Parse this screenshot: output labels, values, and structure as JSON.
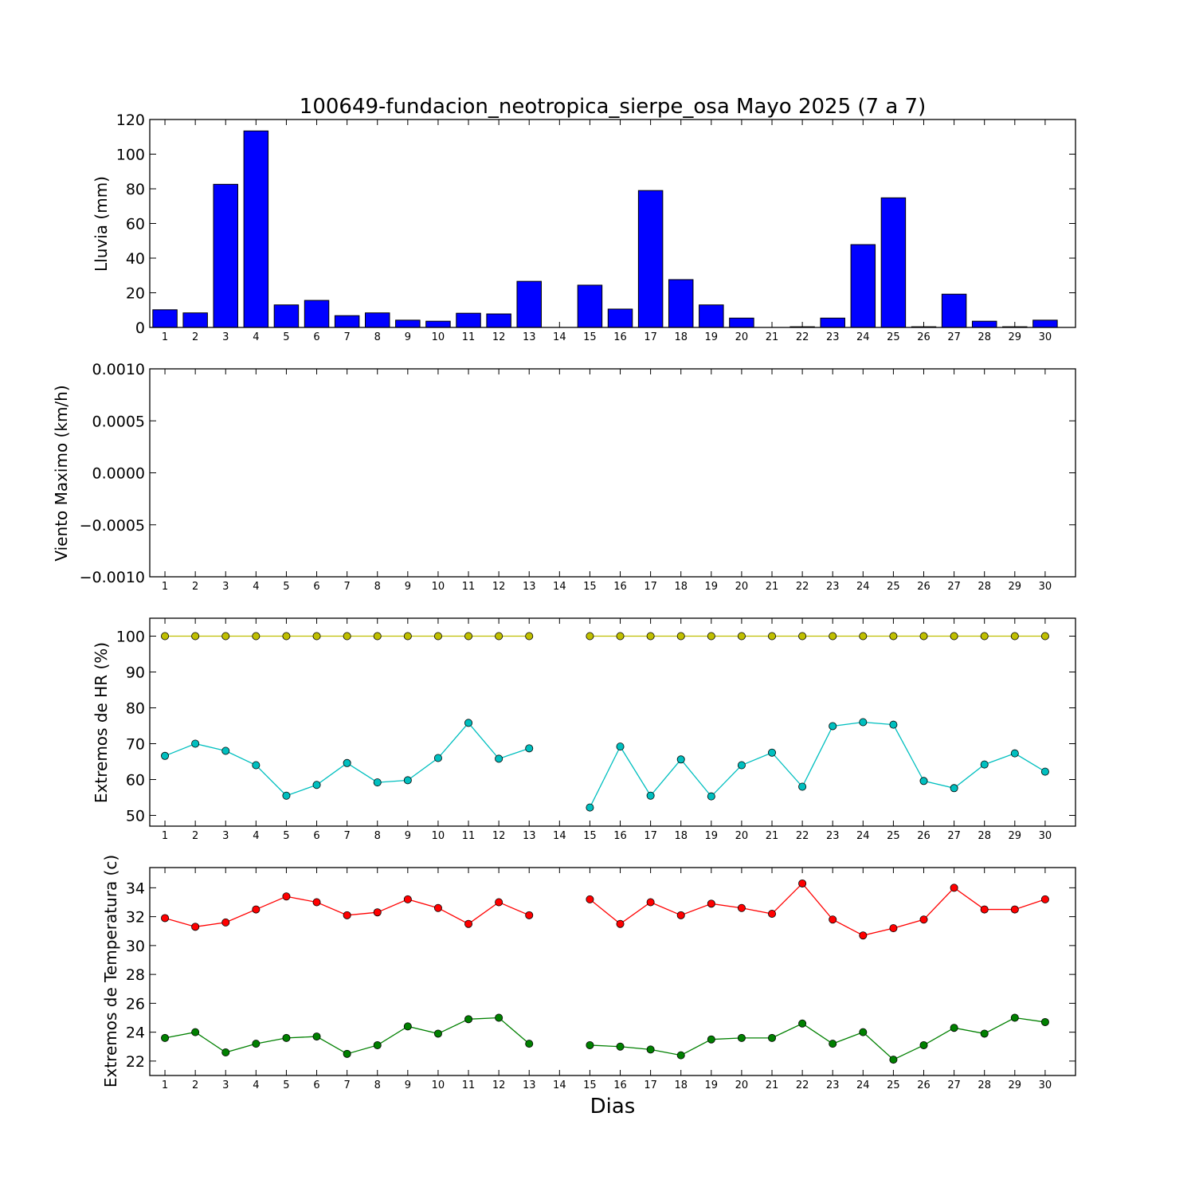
{
  "chart_data": [
    {
      "type": "bar",
      "id": "rain",
      "title": "100649-fundacion_neotropica_sierpe_osa Mayo 2025  (7 a 7)",
      "xlabel": "",
      "ylabel": "Lluvia (mm)",
      "ylim": [
        0,
        120
      ],
      "yticks": [
        "0",
        "20",
        "40",
        "60",
        "80",
        "100",
        "120"
      ],
      "categories": [
        "1",
        "2",
        "3",
        "4",
        "5",
        "6",
        "7",
        "8",
        "9",
        "10",
        "11",
        "12",
        "13",
        "14",
        "15",
        "16",
        "17",
        "18",
        "19",
        "20",
        "21",
        "22",
        "23",
        "24",
        "25",
        "26",
        "27",
        "28",
        "29",
        "30"
      ],
      "values": [
        10.2,
        8.4,
        82.6,
        113.4,
        13.0,
        15.6,
        6.8,
        8.4,
        4.2,
        3.6,
        8.2,
        7.8,
        26.6,
        null,
        24.4,
        10.6,
        79.0,
        27.6,
        13.0,
        5.4,
        0,
        0.4,
        5.4,
        47.8,
        74.8,
        0.4,
        19.2,
        3.6,
        0.4,
        4.2
      ],
      "color": "#0000ff",
      "grid": false
    },
    {
      "type": "line",
      "id": "wind",
      "title": "",
      "xlabel": "",
      "ylabel": "Viento Maximo (km/h)",
      "ylim": [
        -0.001,
        0.001
      ],
      "yticks": [
        "−0.0010",
        "−0.0005",
        "0.0000",
        "0.0005",
        "0.0010"
      ],
      "categories": [
        "1",
        "2",
        "3",
        "4",
        "5",
        "6",
        "7",
        "8",
        "9",
        "10",
        "11",
        "12",
        "13",
        "14",
        "15",
        "16",
        "17",
        "18",
        "19",
        "20",
        "21",
        "22",
        "23",
        "24",
        "25",
        "26",
        "27",
        "28",
        "29",
        "30"
      ],
      "series": [],
      "grid": false
    },
    {
      "type": "line",
      "id": "hr",
      "title": "",
      "xlabel": "",
      "ylabel": "Extremos de HR (%)",
      "ylim": [
        47,
        105
      ],
      "yticks": [
        "50",
        "60",
        "70",
        "80",
        "90",
        "100"
      ],
      "categories": [
        "1",
        "2",
        "3",
        "4",
        "5",
        "6",
        "7",
        "8",
        "9",
        "10",
        "11",
        "12",
        "13",
        "14",
        "15",
        "16",
        "17",
        "18",
        "19",
        "20",
        "21",
        "22",
        "23",
        "24",
        "25",
        "26",
        "27",
        "28",
        "29",
        "30"
      ],
      "series": [
        {
          "color": "#bfbf00",
          "values": [
            100,
            100,
            100,
            100,
            100,
            100,
            100,
            100,
            100,
            100,
            100,
            100,
            100,
            null,
            100,
            100,
            100,
            100,
            100,
            100,
            100,
            100,
            100,
            100,
            100,
            100,
            100,
            100,
            100,
            100
          ]
        },
        {
          "color": "#00bfbf",
          "values": [
            66.6,
            70.0,
            68.0,
            64.0,
            55.5,
            58.5,
            64.6,
            59.2,
            59.8,
            66.0,
            75.8,
            65.8,
            68.7,
            null,
            52.2,
            69.2,
            55.5,
            65.6,
            55.3,
            64.0,
            67.5,
            58.0,
            74.9,
            76.0,
            75.3,
            59.6,
            57.6,
            64.2,
            67.3,
            62.2
          ]
        }
      ],
      "grid": false
    },
    {
      "type": "line",
      "id": "temp",
      "title": "",
      "xlabel": "Dias",
      "ylabel": "Extremos de Temperatura (c)",
      "ylim": [
        21,
        35.4
      ],
      "yticks": [
        "22",
        "24",
        "26",
        "28",
        "30",
        "32",
        "34"
      ],
      "categories": [
        "1",
        "2",
        "3",
        "4",
        "5",
        "6",
        "7",
        "8",
        "9",
        "10",
        "11",
        "12",
        "13",
        "14",
        "15",
        "16",
        "17",
        "18",
        "19",
        "20",
        "21",
        "22",
        "23",
        "24",
        "25",
        "26",
        "27",
        "28",
        "29",
        "30"
      ],
      "series": [
        {
          "color": "#ff0000",
          "values": [
            31.9,
            31.3,
            31.6,
            32.5,
            33.4,
            33.0,
            32.1,
            32.3,
            33.2,
            32.6,
            31.5,
            33.0,
            32.1,
            null,
            33.2,
            31.5,
            33.0,
            32.1,
            32.9,
            32.6,
            32.2,
            34.3,
            31.8,
            30.7,
            31.2,
            31.8,
            34.0,
            32.5,
            32.5,
            33.2
          ]
        },
        {
          "color": "#008000",
          "values": [
            23.6,
            24.0,
            22.6,
            23.2,
            23.6,
            23.7,
            22.5,
            23.1,
            24.4,
            23.9,
            24.9,
            25.0,
            23.2,
            null,
            23.1,
            23.0,
            22.8,
            22.4,
            23.5,
            23.6,
            23.6,
            24.6,
            23.2,
            24.0,
            22.1,
            23.1,
            24.3,
            23.9,
            25.0,
            24.7
          ]
        }
      ],
      "grid": false
    }
  ]
}
